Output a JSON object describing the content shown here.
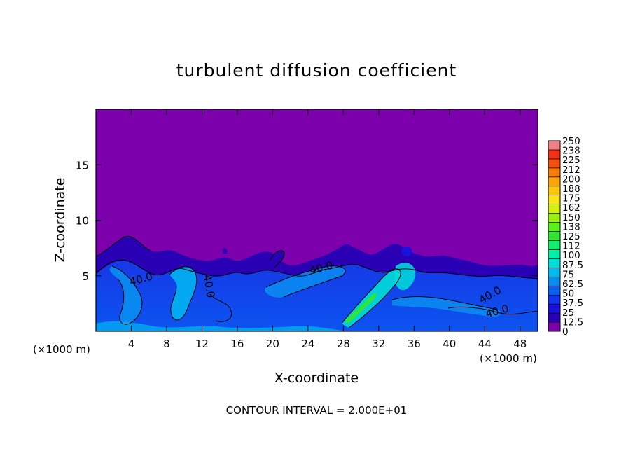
{
  "title": "turbulent diffusion coefficient",
  "footer": "CONTOUR INTERVAL = 2.000E+01",
  "colors": {
    "background": "#7c00ab",
    "contour": "#000000",
    "text": "#000000"
  },
  "chart_data": {
    "type": "heatmap",
    "title": "turbulent diffusion coefficient",
    "xlabel": "X-coordinate",
    "ylabel": "Z-coordinate",
    "x_unit": "(×1000 m)",
    "y_unit": "(×1000 m)",
    "xlim": [
      0,
      50
    ],
    "ylim": [
      0,
      20
    ],
    "x_ticks": [
      4,
      8,
      12,
      16,
      20,
      24,
      28,
      32,
      36,
      40,
      44,
      48
    ],
    "y_ticks": [
      5,
      10,
      15
    ],
    "contour_interval": 20,
    "contour_labels": [
      {
        "text": "40.0",
        "x": 5.2,
        "z": 4.4
      },
      {
        "text": "40.0",
        "x": 12.4,
        "z": 4.0
      },
      {
        "text": "40.0",
        "x": 25.6,
        "z": 5.4
      },
      {
        "text": "40.0",
        "x": 44.8,
        "z": 3.0
      },
      {
        "text": "40.0",
        "x": 45.5,
        "z": 1.5
      }
    ],
    "colorbar": {
      "levels": [
        "0",
        "12.5",
        "25",
        "37.5",
        "50",
        "62.5",
        "75",
        "87.5",
        "100",
        "112",
        "125",
        "138",
        "150",
        "162",
        "175",
        "188",
        "200",
        "212",
        "225",
        "238",
        "250"
      ],
      "colors": [
        "#7c00ab",
        "#2a00b4",
        "#1c10dc",
        "#1234ee",
        "#0a62f2",
        "#0a8ef2",
        "#00baf0",
        "#00ded8",
        "#00f0a8",
        "#14ee6e",
        "#30e634",
        "#5af01a",
        "#9af010",
        "#d6f010",
        "#f8e614",
        "#fcc80c",
        "#fca40a",
        "#f87c0c",
        "#f65010",
        "#f43018",
        "#f27e86"
      ]
    }
  }
}
